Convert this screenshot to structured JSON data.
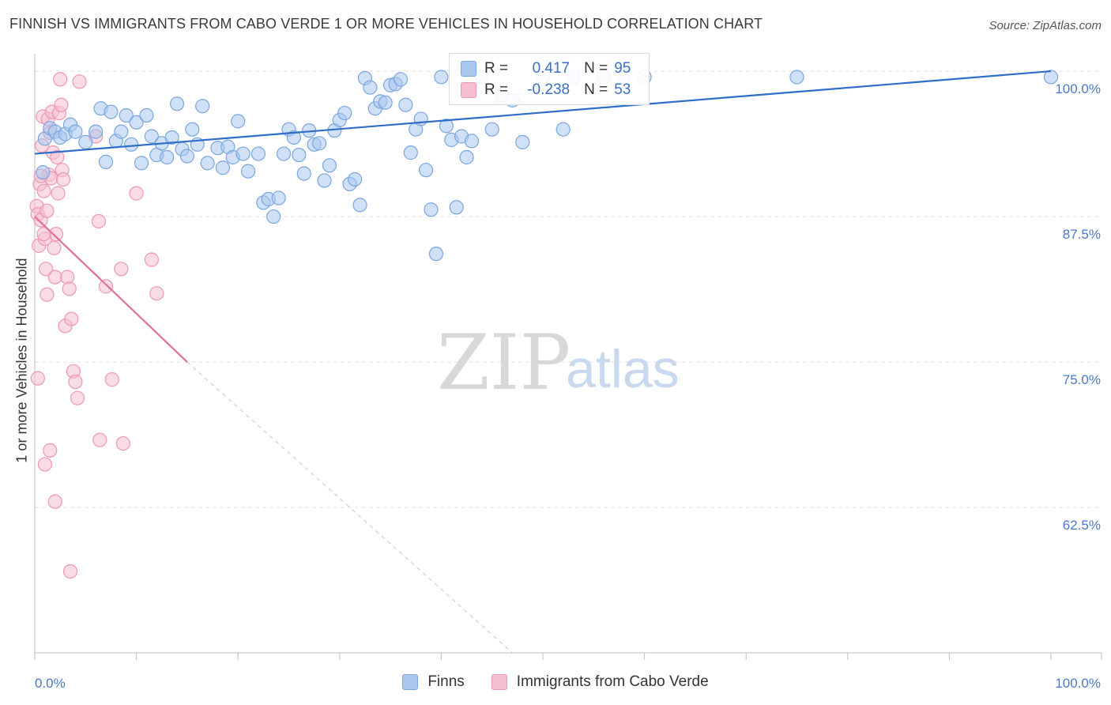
{
  "title": "FINNISH VS IMMIGRANTS FROM CABO VERDE 1 OR MORE VEHICLES IN HOUSEHOLD CORRELATION CHART",
  "source": "Source: ZipAtlas.com",
  "watermark": {
    "zip": "ZIP",
    "atlas": "atlas"
  },
  "legend": {
    "r_label": "R =",
    "n_label": "N =",
    "series": [
      {
        "r": "0.417",
        "n": "95"
      },
      {
        "r": "-0.238",
        "n": "53"
      }
    ]
  },
  "bottom_legend": [
    "Finns",
    "Immigrants from Cabo Verde"
  ],
  "colors": {
    "finns_fill": "#a9c6ef",
    "finns_stroke": "#7aa6e0",
    "finns_line": "#2e6ec8",
    "cabo_fill": "#f6bfcf",
    "cabo_stroke": "#ee97b2",
    "cabo_line": "#e0719a",
    "tick_text": "#4a78c8",
    "grid": "#e3e3e3"
  },
  "chart_data": {
    "type": "scatter",
    "title": "FINNISH VS IMMIGRANTS FROM CABO VERDE 1 OR MORE VEHICLES IN HOUSEHOLD CORRELATION CHART",
    "ylabel": "1 or more Vehicles in Household",
    "xlabel": "",
    "xlim": [
      0,
      100
    ],
    "ylim": [
      50,
      101.5
    ],
    "x_tick_labels": [
      "0.0%",
      "100.0%"
    ],
    "y_ticks": [
      62.5,
      75.0,
      87.5,
      100.0
    ],
    "y_tick_labels": [
      "62.5%",
      "75.0%",
      "87.5%",
      "100.0%"
    ],
    "grid": "horizontal dashed",
    "legend_position": "top-center",
    "series": [
      {
        "name": "Finns",
        "r": 0.417,
        "n": 95,
        "trend": {
          "x": [
            0,
            100
          ],
          "y": [
            92.9,
            100.0
          ],
          "dashed_extension": false
        },
        "points": [
          [
            0.8,
            91.3
          ],
          [
            1.0,
            94.2
          ],
          [
            1.5,
            95.1
          ],
          [
            2.0,
            94.8
          ],
          [
            2.5,
            94.3
          ],
          [
            3.0,
            94.6
          ],
          [
            3.5,
            95.4
          ],
          [
            4.0,
            94.8
          ],
          [
            5.0,
            93.9
          ],
          [
            6.0,
            94.8
          ],
          [
            6.5,
            96.8
          ],
          [
            7.0,
            92.2
          ],
          [
            7.5,
            96.5
          ],
          [
            8.0,
            94.0
          ],
          [
            8.5,
            94.8
          ],
          [
            9.0,
            96.2
          ],
          [
            9.5,
            93.7
          ],
          [
            10.0,
            95.6
          ],
          [
            10.5,
            92.1
          ],
          [
            11.0,
            96.2
          ],
          [
            11.5,
            94.4
          ],
          [
            12.0,
            92.8
          ],
          [
            12.5,
            93.8
          ],
          [
            13.0,
            92.6
          ],
          [
            13.5,
            94.3
          ],
          [
            14.0,
            97.2
          ],
          [
            14.5,
            93.3
          ],
          [
            15.0,
            92.7
          ],
          [
            15.5,
            95.0
          ],
          [
            16.0,
            93.7
          ],
          [
            16.5,
            97.0
          ],
          [
            17.0,
            92.1
          ],
          [
            18.0,
            93.4
          ],
          [
            18.5,
            91.7
          ],
          [
            19.0,
            93.5
          ],
          [
            19.5,
            92.6
          ],
          [
            20.0,
            95.7
          ],
          [
            20.5,
            92.9
          ],
          [
            21.0,
            91.4
          ],
          [
            22.0,
            92.9
          ],
          [
            22.5,
            88.7
          ],
          [
            23.0,
            89.0
          ],
          [
            23.5,
            87.5
          ],
          [
            24.0,
            89.1
          ],
          [
            24.5,
            92.9
          ],
          [
            25.0,
            95.0
          ],
          [
            25.5,
            94.3
          ],
          [
            26.0,
            92.8
          ],
          [
            26.5,
            91.2
          ],
          [
            27.0,
            94.9
          ],
          [
            27.5,
            93.7
          ],
          [
            28.0,
            93.8
          ],
          [
            28.5,
            90.6
          ],
          [
            29.0,
            91.9
          ],
          [
            29.5,
            94.9
          ],
          [
            30.0,
            95.8
          ],
          [
            30.5,
            96.4
          ],
          [
            31.0,
            90.3
          ],
          [
            31.5,
            90.7
          ],
          [
            32.0,
            88.5
          ],
          [
            32.5,
            99.4
          ],
          [
            33.0,
            98.6
          ],
          [
            33.5,
            96.8
          ],
          [
            34.0,
            97.4
          ],
          [
            34.5,
            97.3
          ],
          [
            35.0,
            98.8
          ],
          [
            35.5,
            98.9
          ],
          [
            36.0,
            99.3
          ],
          [
            36.5,
            97.1
          ],
          [
            37.0,
            93.0
          ],
          [
            37.5,
            95.0
          ],
          [
            38.0,
            95.9
          ],
          [
            38.5,
            91.5
          ],
          [
            39.0,
            88.1
          ],
          [
            39.5,
            84.3
          ],
          [
            40.0,
            99.5
          ],
          [
            40.5,
            95.3
          ],
          [
            41.0,
            94.1
          ],
          [
            41.5,
            88.3
          ],
          [
            42.0,
            94.4
          ],
          [
            42.5,
            92.6
          ],
          [
            43.0,
            94.0
          ],
          [
            44.0,
            99.5
          ],
          [
            45.0,
            95.0
          ],
          [
            46.0,
            97.9
          ],
          [
            47.0,
            97.5
          ],
          [
            48.0,
            93.9
          ],
          [
            50.0,
            99.5
          ],
          [
            52.0,
            95.0
          ],
          [
            53.0,
            99.5
          ],
          [
            56.0,
            99.5
          ],
          [
            58.0,
            99.5
          ],
          [
            60.0,
            99.5
          ],
          [
            75.0,
            99.5
          ],
          [
            100.0,
            99.5
          ]
        ]
      },
      {
        "name": "Immigrants from Cabo Verde",
        "r": -0.238,
        "n": 53,
        "trend": {
          "x": [
            0,
            15
          ],
          "y": [
            87.5,
            75.0
          ],
          "dashed_extension_to": [
            47,
            50
          ]
        },
        "points": [
          [
            0.2,
            88.4
          ],
          [
            0.3,
            87.7
          ],
          [
            0.4,
            85.0
          ],
          [
            0.5,
            90.3
          ],
          [
            0.6,
            87.2
          ],
          [
            0.7,
            93.6
          ],
          [
            0.8,
            96.1
          ],
          [
            0.9,
            89.7
          ],
          [
            1.0,
            85.6
          ],
          [
            1.1,
            83.0
          ],
          [
            1.2,
            80.8
          ],
          [
            1.3,
            95.9
          ],
          [
            1.4,
            91.1
          ],
          [
            1.5,
            94.7
          ],
          [
            1.6,
            90.8
          ],
          [
            1.7,
            96.5
          ],
          [
            1.8,
            93.0
          ],
          [
            1.9,
            84.8
          ],
          [
            2.0,
            82.3
          ],
          [
            2.1,
            86.0
          ],
          [
            2.2,
            92.6
          ],
          [
            2.3,
            89.5
          ],
          [
            2.4,
            96.4
          ],
          [
            2.5,
            99.3
          ],
          [
            2.6,
            97.1
          ],
          [
            2.7,
            91.5
          ],
          [
            2.8,
            90.7
          ],
          [
            3.0,
            78.1
          ],
          [
            3.2,
            82.3
          ],
          [
            3.4,
            81.3
          ],
          [
            3.6,
            78.7
          ],
          [
            3.8,
            74.2
          ],
          [
            4.0,
            73.3
          ],
          [
            4.2,
            71.9
          ],
          [
            4.4,
            99.1
          ],
          [
            6.0,
            94.4
          ],
          [
            6.3,
            87.1
          ],
          [
            6.4,
            68.3
          ],
          [
            7.0,
            81.5
          ],
          [
            7.6,
            73.5
          ],
          [
            8.5,
            83.0
          ],
          [
            8.7,
            68.0
          ],
          [
            10.0,
            89.5
          ],
          [
            11.5,
            83.8
          ],
          [
            12.0,
            80.9
          ],
          [
            0.3,
            73.6
          ],
          [
            1.0,
            66.2
          ],
          [
            1.5,
            67.4
          ],
          [
            2.0,
            63.0
          ],
          [
            3.5,
            57.0
          ],
          [
            0.9,
            86.0
          ],
          [
            0.6,
            91.0
          ],
          [
            1.2,
            88.0
          ]
        ]
      }
    ]
  }
}
